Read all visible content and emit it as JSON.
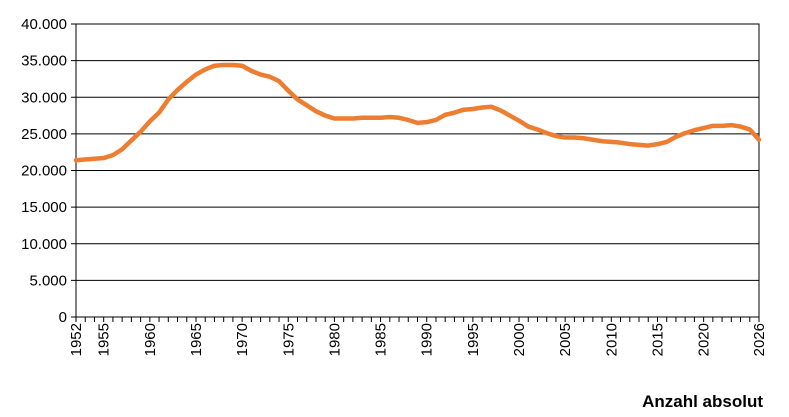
{
  "chart_data": {
    "type": "line",
    "title": "",
    "xlabel": "Anzahl absolut",
    "ylabel": "",
    "ylim": [
      0,
      40000
    ],
    "xlim": [
      1952,
      2026
    ],
    "grid": true,
    "y_tick_labels": [
      "0",
      "5.000",
      "10.000",
      "15.000",
      "20.000",
      "25.000",
      "30.000",
      "35.000",
      "40.000"
    ],
    "x_tick_labels": [
      "1952",
      "1955",
      "1960",
      "1965",
      "1970",
      "1975",
      "1980",
      "1985",
      "1990",
      "1995",
      "2000",
      "2005",
      "2010",
      "2015",
      "2020",
      "2026"
    ],
    "line_color": "#ED7D31",
    "series": [
      {
        "x": [
          1952,
          1953,
          1954,
          1955,
          1956,
          1957,
          1958,
          1959,
          1960,
          1961,
          1962,
          1963,
          1964,
          1965,
          1966,
          1967,
          1968,
          1969,
          1970,
          1971,
          1972,
          1973,
          1974,
          1975,
          1976,
          1977,
          1978,
          1979,
          1980,
          1981,
          1982,
          1983,
          1984,
          1985,
          1986,
          1987,
          1988,
          1989,
          1990,
          1991,
          1992,
          1993,
          1994,
          1995,
          1996,
          1997,
          1998,
          1999,
          2000,
          2001,
          2002,
          2003,
          2004,
          2005,
          2006,
          2007,
          2008,
          2009,
          2010,
          2011,
          2012,
          2013,
          2014,
          2015,
          2016,
          2017,
          2018,
          2019,
          2020,
          2021,
          2022,
          2023,
          2024,
          2025,
          2026
        ],
        "values": [
          21400,
          21500,
          21600,
          21700,
          22100,
          22900,
          24100,
          25300,
          26700,
          27900,
          29700,
          31000,
          32100,
          33100,
          33800,
          34300,
          34400,
          34400,
          34300,
          33600,
          33100,
          32800,
          32200,
          30900,
          29700,
          28900,
          28100,
          27500,
          27100,
          27100,
          27100,
          27200,
          27200,
          27200,
          27300,
          27200,
          26900,
          26500,
          26600,
          26900,
          27600,
          27900,
          28300,
          28400,
          28600,
          28700,
          28200,
          27500,
          26800,
          26000,
          25600,
          25100,
          24700,
          24500,
          24500,
          24400,
          24200,
          24000,
          23900,
          23800,
          23600,
          23500,
          23400,
          23600,
          23900,
          24600,
          25100,
          25500,
          25800,
          26100,
          26100,
          26200,
          26000,
          25600,
          24200
        ]
      }
    ]
  }
}
